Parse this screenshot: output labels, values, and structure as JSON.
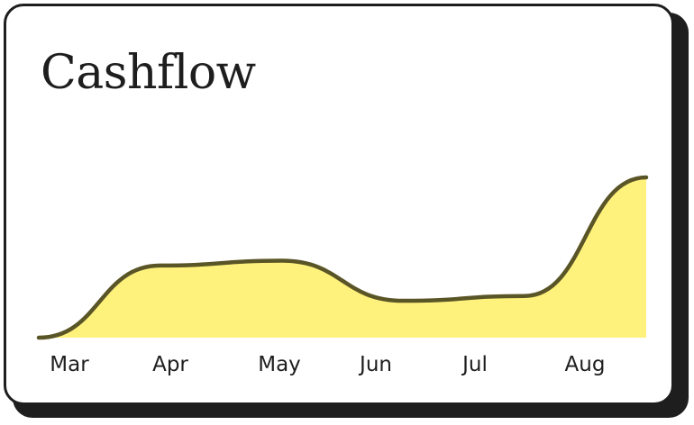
{
  "card": {
    "title": "Cashflow"
  },
  "colors": {
    "line": "#5a5527",
    "fill": "#fff27c",
    "text": "#1e1e1e"
  },
  "chart_data": {
    "type": "area",
    "title": "Cashflow",
    "categories": [
      "Mar",
      "Apr",
      "May",
      "Jun",
      "Jul",
      "Aug"
    ],
    "series": [
      {
        "values": [
          0,
          45,
          48,
          23,
          26,
          100
        ]
      }
    ],
    "grid": false,
    "legend": "none",
    "ylim": [
      0,
      100
    ]
  }
}
